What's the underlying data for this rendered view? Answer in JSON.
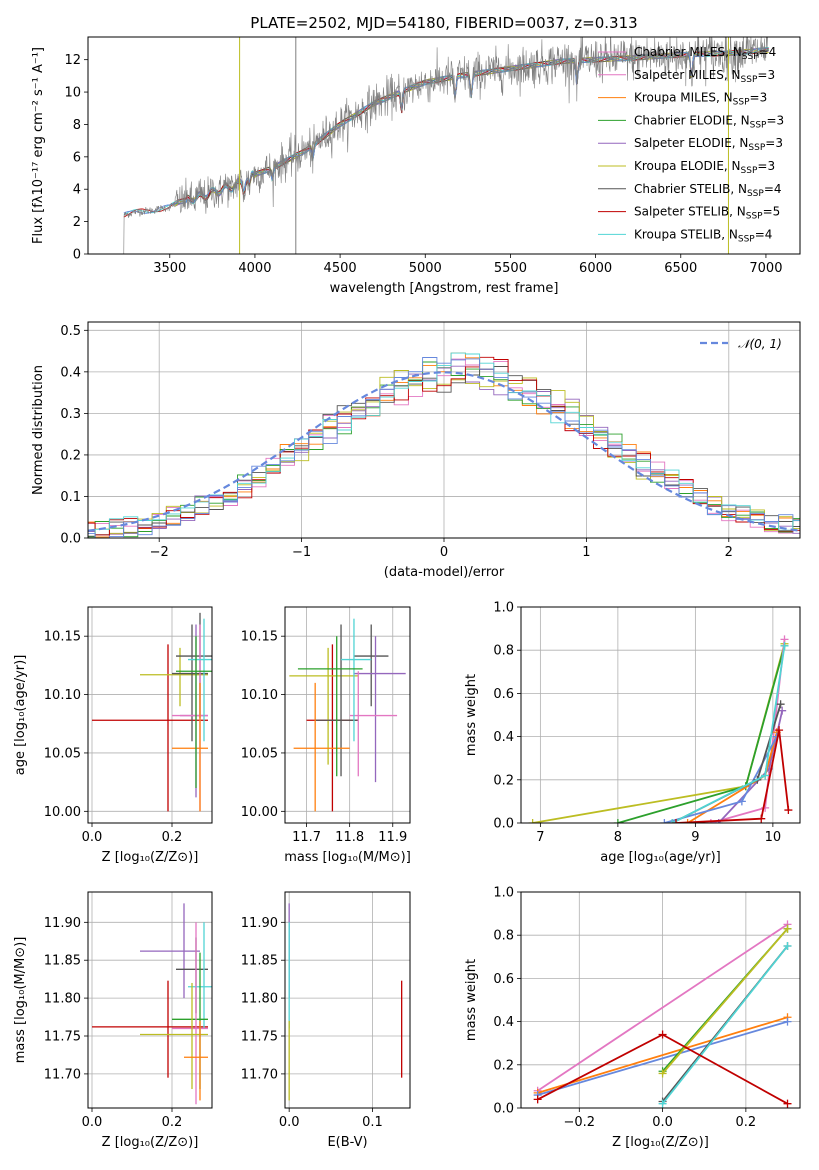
{
  "colors": [
    "#e377c2",
    "#ff7f0e",
    "#2ca02c",
    "#9467bd",
    "#bcbd22",
    "#555555",
    "#c00000",
    "#50d4d4",
    "#6688dd"
  ],
  "chart_data": [
    {
      "type": "line",
      "title": "PLATE=2502, MJD=54180, FIBERID=0037, z=0.313",
      "xlabel": "wavelength [Angstrom, rest frame]",
      "ylabel": "Flux [fλ10⁻¹⁷ erg cm⁻² s⁻¹ A⁻¹]",
      "xlim": [
        3020,
        7200
      ],
      "ylim": [
        0,
        13.4
      ],
      "xticks": [
        3500,
        4000,
        4500,
        5000,
        5500,
        6000,
        6500,
        7000
      ],
      "yticks": [
        0,
        2,
        4,
        6,
        8,
        10,
        12
      ],
      "grid": false,
      "legend_position": "top-right",
      "legend": [
        {
          "label": "Chabrier MILES, N",
          "sub": "SSP",
          "tail": "=4",
          "color": "#e377c2"
        },
        {
          "label": "Salpeter MILES, N",
          "sub": "SSP",
          "tail": "=3",
          "color": "#e377c2"
        },
        {
          "label": "Kroupa MILES, N",
          "sub": "SSP",
          "tail": "=3",
          "color": "#ff7f0e"
        },
        {
          "label": "Chabrier ELODIE, N",
          "sub": "SSP",
          "tail": "=3",
          "color": "#2ca02c"
        },
        {
          "label": "Salpeter ELODIE, N",
          "sub": "SSP",
          "tail": "=3",
          "color": "#9467bd"
        },
        {
          "label": "Kroupa ELODIE, N",
          "sub": "SSP",
          "tail": "=3",
          "color": "#bcbd22"
        },
        {
          "label": "Chabrier STELIB, N",
          "sub": "SSP",
          "tail": "=4",
          "color": "#555555"
        },
        {
          "label": "Salpeter STELIB, N",
          "sub": "SSP",
          "tail": "=5",
          "color": "#c00000"
        },
        {
          "label": "Kroupa STELIB, N",
          "sub": "SSP",
          "tail": "=4",
          "color": "#50d4d4"
        }
      ],
      "continuum": {
        "x": [
          3230,
          3300,
          3400,
          3500,
          3550,
          3700,
          3900,
          4000,
          4100,
          4300,
          4500,
          4700,
          4900,
          5000,
          5200,
          5400,
          5600,
          5800,
          6000,
          6200,
          6500,
          6800,
          7000
        ],
        "y": [
          2.4,
          2.6,
          2.7,
          2.9,
          3.2,
          3.6,
          4.3,
          4.9,
          5.3,
          6.4,
          8.0,
          9.3,
          10.2,
          10.6,
          11.0,
          11.3,
          11.6,
          11.9,
          12.0,
          12.1,
          12.3,
          12.4,
          12.6
        ]
      }
    },
    {
      "type": "histogram",
      "xlabel": "(data-model)/error",
      "ylabel": "Normed distribution",
      "xlim": [
        -2.5,
        2.5
      ],
      "ylim": [
        0,
        0.52
      ],
      "xticks": [
        -2,
        -1,
        0,
        1,
        2
      ],
      "yticks": [
        0.0,
        0.1,
        0.2,
        0.3,
        0.4,
        0.5
      ],
      "grid": true,
      "legend_position": "top-right",
      "legend": [
        {
          "label": "𝒩(0, 1)",
          "style": "dashed",
          "color": "#6688dd"
        }
      ]
    },
    {
      "type": "scatter",
      "xlabel": "Z [log₁₀(Z/Z⊙)]",
      "ylabel": "age  [log₁₀(age/yr)]",
      "xlim": [
        -0.01,
        0.3
      ],
      "ylim": [
        9.99,
        10.175
      ],
      "xticks": [
        0.0,
        0.2
      ],
      "yticks": [
        10.0,
        10.05,
        10.1,
        10.15
      ],
      "grid": true,
      "points": [
        {
          "x": 0.19,
          "xlo": 0.0,
          "xhi": 0.29,
          "y": 10.078,
          "ylo": 10.0,
          "yhi": 10.143,
          "c": "#c00000"
        },
        {
          "x": 0.22,
          "xlo": 0.12,
          "xhi": 0.29,
          "y": 10.117,
          "ylo": 10.09,
          "yhi": 10.14,
          "c": "#bcbd22"
        },
        {
          "x": 0.25,
          "xlo": 0.2,
          "xhi": 0.29,
          "y": 10.118,
          "ylo": 10.06,
          "yhi": 10.16,
          "c": "#555555"
        },
        {
          "x": 0.27,
          "xlo": 0.21,
          "xhi": 0.3,
          "y": 10.133,
          "ylo": 10.08,
          "yhi": 10.17,
          "c": "#555555"
        },
        {
          "x": 0.26,
          "xlo": 0.22,
          "xhi": 0.29,
          "y": 10.082,
          "ylo": 10.012,
          "yhi": 10.16,
          "c": "#9467bd"
        },
        {
          "x": 0.27,
          "xlo": 0.2,
          "xhi": 0.29,
          "y": 10.082,
          "ylo": 10.0,
          "yhi": 10.16,
          "c": "#e377c2"
        },
        {
          "x": 0.27,
          "xlo": 0.2,
          "xhi": 0.29,
          "y": 10.054,
          "ylo": 10.0,
          "yhi": 10.11,
          "c": "#ff7f0e"
        },
        {
          "x": 0.28,
          "xlo": 0.24,
          "xhi": 0.3,
          "y": 10.13,
          "ylo": 10.06,
          "yhi": 10.165,
          "c": "#50d4d4"
        },
        {
          "x": 0.26,
          "xlo": 0.21,
          "xhi": 0.3,
          "y": 10.12,
          "ylo": 10.02,
          "yhi": 10.15,
          "c": "#2ca02c"
        }
      ]
    },
    {
      "type": "scatter",
      "xlabel": "mass [log₁₀(M/M⊙)]",
      "ylabel": "",
      "xlim": [
        11.65,
        11.94
      ],
      "ylim": [
        9.99,
        10.175
      ],
      "xticks": [
        11.7,
        11.8,
        11.9
      ],
      "yticks": [
        10.0,
        10.05,
        10.1,
        10.15
      ],
      "grid": true,
      "points": [
        {
          "x": 11.76,
          "xlo": 11.7,
          "xhi": 11.82,
          "y": 10.078,
          "ylo": 10.0,
          "yhi": 10.143,
          "c": "#c00000"
        },
        {
          "x": 11.75,
          "xlo": 11.66,
          "xhi": 11.82,
          "y": 10.116,
          "ylo": 10.04,
          "yhi": 10.14,
          "c": "#bcbd22"
        },
        {
          "x": 11.78,
          "xlo": 11.72,
          "xhi": 11.82,
          "y": 10.078,
          "ylo": 10.03,
          "yhi": 10.16,
          "c": "#555555"
        },
        {
          "x": 11.85,
          "xlo": 11.81,
          "xhi": 11.89,
          "y": 10.133,
          "ylo": 10.09,
          "yhi": 10.16,
          "c": "#555555"
        },
        {
          "x": 11.86,
          "xlo": 11.81,
          "xhi": 11.93,
          "y": 10.118,
          "ylo": 10.025,
          "yhi": 10.15,
          "c": "#9467bd"
        },
        {
          "x": 11.82,
          "xlo": 11.8,
          "xhi": 11.91,
          "y": 10.082,
          "ylo": 10.03,
          "yhi": 10.12,
          "c": "#e377c2"
        },
        {
          "x": 11.72,
          "xlo": 11.67,
          "xhi": 11.8,
          "y": 10.054,
          "ylo": 10.0,
          "yhi": 10.11,
          "c": "#ff7f0e"
        },
        {
          "x": 11.81,
          "xlo": 11.78,
          "xhi": 11.85,
          "y": 10.13,
          "ylo": 10.06,
          "yhi": 10.165,
          "c": "#50d4d4"
        },
        {
          "x": 11.77,
          "xlo": 11.68,
          "xhi": 11.83,
          "y": 10.122,
          "ylo": 10.03,
          "yhi": 10.15,
          "c": "#2ca02c"
        }
      ]
    },
    {
      "type": "line",
      "xlabel": "age  [log₁₀(age/yr)]",
      "ylabel": "mass weight",
      "xlim": [
        6.75,
        10.35
      ],
      "ylim": [
        0,
        1.0
      ],
      "xticks": [
        7,
        8,
        9,
        10
      ],
      "yticks": [
        0.0,
        0.2,
        0.4,
        0.6,
        0.8,
        1.0
      ],
      "grid": true,
      "series": [
        {
          "c": "#bcbd22",
          "x": [
            6.9,
            9.65,
            10.15
          ],
          "y": [
            0.0,
            0.17,
            0.83
          ]
        },
        {
          "c": "#2ca02c",
          "x": [
            8.0,
            9.65,
            10.15
          ],
          "y": [
            0.0,
            0.17,
            0.82
          ]
        },
        {
          "c": "#e377c2",
          "x": [
            9.2,
            9.9,
            10.15
          ],
          "y": [
            0.0,
            0.07,
            0.85
          ]
        },
        {
          "c": "#9467bd",
          "x": [
            9.3,
            9.95,
            10.12
          ],
          "y": [
            0.0,
            0.25,
            0.52
          ]
        },
        {
          "c": "#ff7f0e",
          "x": [
            8.9,
            9.9,
            10.05
          ],
          "y": [
            0.0,
            0.22,
            0.42
          ]
        },
        {
          "c": "#6688dd",
          "x": [
            8.6,
            9.6,
            10.05
          ],
          "y": [
            0.0,
            0.1,
            0.4
          ]
        },
        {
          "c": "#555555",
          "x": [
            8.7,
            9.8,
            10.1
          ],
          "y": [
            0.0,
            0.2,
            0.55
          ]
        },
        {
          "c": "#50d4d4",
          "x": [
            8.7,
            9.9,
            10.15
          ],
          "y": [
            0.0,
            0.22,
            0.82
          ]
        },
        {
          "c": "#c00000",
          "x": [
            8.75,
            9.85,
            10.08,
            10.2
          ],
          "y": [
            0.0,
            0.02,
            0.43,
            0.06
          ]
        }
      ]
    },
    {
      "type": "scatter",
      "xlabel": "Z [log₁₀(Z/Z⊙)]",
      "ylabel": "mass [log₁₀(M/M⊙)]",
      "xlim": [
        -0.01,
        0.3
      ],
      "ylim": [
        11.655,
        11.94
      ],
      "xticks": [
        0.0,
        0.2
      ],
      "yticks": [
        11.7,
        11.75,
        11.8,
        11.85,
        11.9
      ],
      "grid": true,
      "points": [
        {
          "x": 0.19,
          "xlo": 0.0,
          "xhi": 0.29,
          "y": 11.762,
          "ylo": 11.695,
          "yhi": 11.823,
          "c": "#c00000"
        },
        {
          "x": 0.23,
          "xlo": 0.12,
          "xhi": 0.27,
          "y": 11.862,
          "ylo": 11.8,
          "yhi": 11.925,
          "c": "#9467bd"
        },
        {
          "x": 0.26,
          "xlo": 0.21,
          "xhi": 0.29,
          "y": 11.838,
          "ylo": 11.78,
          "yhi": 11.88,
          "c": "#555555"
        },
        {
          "x": 0.28,
          "xlo": 0.24,
          "xhi": 0.3,
          "y": 11.815,
          "ylo": 11.76,
          "yhi": 11.9,
          "c": "#50d4d4"
        },
        {
          "x": 0.27,
          "xlo": 0.2,
          "xhi": 0.29,
          "y": 11.772,
          "ylo": 11.68,
          "yhi": 11.86,
          "c": "#2ca02c"
        },
        {
          "x": 0.26,
          "xlo": 0.2,
          "xhi": 0.29,
          "y": 11.76,
          "ylo": 11.66,
          "yhi": 11.9,
          "c": "#e377c2"
        },
        {
          "x": 0.25,
          "xlo": 0.12,
          "xhi": 0.29,
          "y": 11.752,
          "ylo": 11.68,
          "yhi": 11.82,
          "c": "#bcbd22"
        },
        {
          "x": 0.27,
          "xlo": 0.23,
          "xhi": 0.29,
          "y": 11.722,
          "ylo": 11.665,
          "yhi": 11.77,
          "c": "#ff7f0e"
        }
      ]
    },
    {
      "type": "scatter",
      "xlabel": "E(B-V)",
      "ylabel": "",
      "xlim": [
        -0.005,
        0.145
      ],
      "ylim": [
        11.655,
        11.94
      ],
      "xticks": [
        0.0,
        0.1
      ],
      "yticks": [
        11.7,
        11.75,
        11.8,
        11.85,
        11.9
      ],
      "grid": true,
      "points": [
        {
          "x": 0.0,
          "xlo": 0.0,
          "xhi": 0.0,
          "y": 11.862,
          "ylo": 11.8,
          "yhi": 11.925,
          "c": "#9467bd"
        },
        {
          "x": 0.0,
          "xlo": 0.0,
          "xhi": 0.0,
          "y": 11.8,
          "ylo": 11.76,
          "yhi": 11.9,
          "c": "#50d4d4"
        },
        {
          "x": 0.0,
          "xlo": 0.0,
          "xhi": 0.0,
          "y": 11.72,
          "ylo": 11.665,
          "yhi": 11.77,
          "c": "#bcbd22"
        },
        {
          "x": 0.135,
          "xlo": 0.135,
          "xhi": 0.135,
          "y": 11.76,
          "ylo": 11.695,
          "yhi": 11.823,
          "c": "#c00000"
        }
      ]
    },
    {
      "type": "line",
      "xlabel": "Z [log₁₀(Z/Z⊙)]",
      "ylabel": "mass weight",
      "xlim": [
        -0.34,
        0.33
      ],
      "ylim": [
        0,
        1.0
      ],
      "xticks": [
        -0.2,
        0.0,
        0.2
      ],
      "yticks": [
        0.0,
        0.2,
        0.4,
        0.6,
        0.8,
        1.0
      ],
      "grid": true,
      "series": [
        {
          "c": "#e377c2",
          "x": [
            -0.3,
            0.3
          ],
          "y": [
            0.08,
            0.85
          ]
        },
        {
          "c": "#ff7f0e",
          "x": [
            -0.3,
            0.3
          ],
          "y": [
            0.07,
            0.42
          ]
        },
        {
          "c": "#6688dd",
          "x": [
            -0.3,
            0.3
          ],
          "y": [
            0.06,
            0.4
          ]
        },
        {
          "c": "#2ca02c",
          "x": [
            0.0,
            0.3
          ],
          "y": [
            0.17,
            0.83
          ]
        },
        {
          "c": "#bcbd22",
          "x": [
            0.0,
            0.3
          ],
          "y": [
            0.16,
            0.83
          ]
        },
        {
          "c": "#555555",
          "x": [
            0.0,
            0.3
          ],
          "y": [
            0.03,
            0.75
          ]
        },
        {
          "c": "#50d4d4",
          "x": [
            0.0,
            0.3
          ],
          "y": [
            0.02,
            0.75
          ]
        },
        {
          "c": "#c00000",
          "x": [
            -0.3,
            0.0,
            0.3
          ],
          "y": [
            0.04,
            0.34,
            0.02
          ]
        }
      ]
    }
  ]
}
